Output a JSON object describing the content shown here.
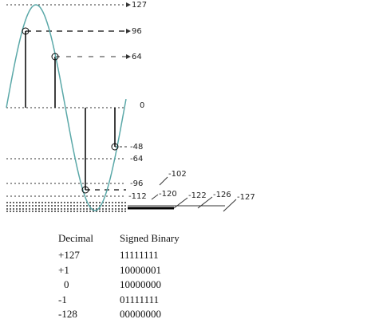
{
  "scale_labels": [
    "127",
    "96",
    "64",
    "0",
    "-48",
    "-64",
    "-96",
    "-102",
    "-112",
    "-120",
    "-122",
    "-126",
    "-127"
  ],
  "table": {
    "header": [
      "Decimal",
      "Signed Binary"
    ],
    "rows": [
      [
        "+127",
        "11111111"
      ],
      [
        "+1",
        "10000001"
      ],
      [
        "0",
        "10000000"
      ],
      [
        "-1",
        "01111111"
      ],
      [
        "-128",
        "00000000"
      ]
    ]
  }
}
